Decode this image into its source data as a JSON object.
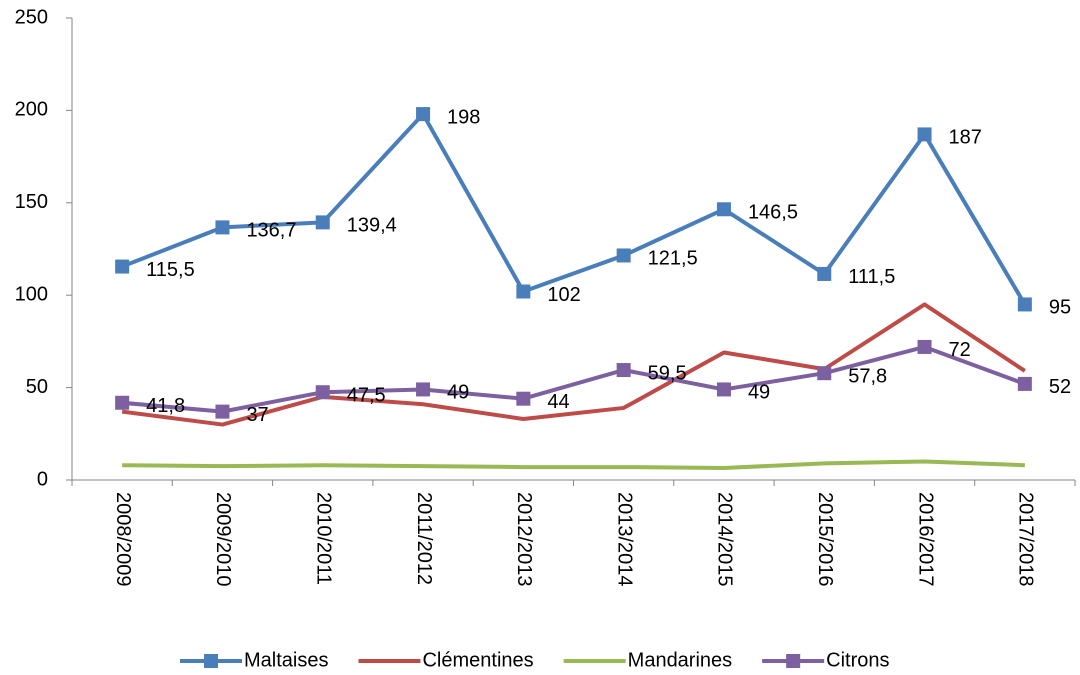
{
  "chart_data": {
    "type": "line",
    "categories": [
      "2008/2009",
      "2009/2010",
      "2010/2011",
      "2011/2012",
      "2012/2013",
      "2013/2014",
      "2014/2015",
      "2015/2016",
      "2016/2017",
      "2017/2018"
    ],
    "series": [
      {
        "name": "Maltaises",
        "color": "#4a7ebb",
        "marker": "square",
        "values": [
          115.5,
          136.7,
          139.4,
          198,
          102,
          121.5,
          146.5,
          111.5,
          187,
          95
        ],
        "value_labels": [
          "115,5",
          "136,7",
          "139,4",
          "198",
          "102",
          "121,5",
          "146,5",
          "111,5",
          "187",
          "95"
        ]
      },
      {
        "name": "Clémentines",
        "color": "#be4b48",
        "values": [
          37,
          30,
          45,
          41,
          33,
          39,
          69,
          60,
          95,
          59
        ]
      },
      {
        "name": "Mandarines",
        "color": "#98b954",
        "values": [
          8,
          7.5,
          8,
          7.5,
          7,
          7,
          6.5,
          9,
          10,
          8
        ]
      },
      {
        "name": "Citrons",
        "color": "#7d60a0",
        "marker": "square",
        "values": [
          41.8,
          37,
          47.5,
          49,
          44,
          59.5,
          49,
          57.8,
          72,
          52
        ],
        "value_labels": [
          "41,8",
          "37",
          "47,5",
          "49",
          "44",
          "59,5",
          "49",
          "57,8",
          "72",
          "52"
        ]
      }
    ],
    "ylim": [
      0,
      250
    ],
    "yticks": [
      0,
      50,
      100,
      150,
      200,
      250
    ],
    "grid": false,
    "legend": "bottom"
  }
}
